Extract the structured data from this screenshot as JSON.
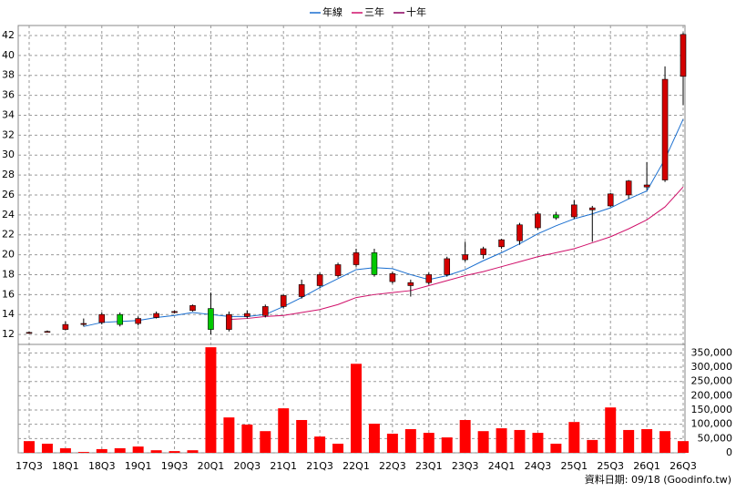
{
  "chart_data": {
    "type": "candlestick",
    "categories": [
      "17Q3",
      null,
      "18Q1",
      null,
      "18Q3",
      null,
      "19Q1",
      null,
      "19Q3",
      null,
      "20Q1",
      null,
      "20Q3",
      null,
      "21Q1",
      null,
      "21Q3",
      null,
      "22Q1",
      null,
      "22Q3",
      null,
      "23Q1",
      null,
      "23Q3",
      null,
      "24Q1",
      null,
      "24Q3",
      null,
      "25Q1",
      null,
      "25Q3",
      null,
      "26Q1",
      null,
      "26Q3"
    ],
    "open": [
      12.2,
      12.3,
      12.5,
      13.0,
      13.2,
      14.0,
      13.1,
      13.7,
      14.2,
      14.4,
      14.6,
      12.5,
      13.8,
      13.9,
      14.8,
      15.8,
      16.9,
      17.9,
      19.0,
      20.2,
      17.3,
      16.9,
      17.2,
      18.0,
      19.5,
      20.0,
      20.8,
      21.4,
      22.7,
      24.0,
      23.8,
      24.5,
      24.9,
      26.0,
      26.8,
      27.5,
      37.9
    ],
    "high": [
      12.3,
      12.4,
      13.3,
      13.6,
      14.2,
      14.2,
      13.8,
      14.3,
      14.4,
      15.0,
      16.2,
      14.3,
      14.4,
      15.0,
      16.0,
      17.5,
      18.2,
      19.2,
      20.6,
      20.6,
      18.3,
      17.5,
      18.2,
      19.8,
      21.3,
      20.8,
      21.6,
      23.2,
      24.3,
      24.3,
      25.5,
      24.9,
      26.2,
      27.5,
      29.3,
      38.9,
      42.3
    ],
    "low": [
      12.1,
      12.2,
      12.4,
      12.8,
      13.0,
      12.8,
      12.9,
      13.6,
      14.1,
      14.3,
      12.0,
      12.3,
      13.6,
      13.7,
      14.6,
      15.6,
      16.7,
      17.7,
      18.8,
      17.8,
      17.1,
      15.8,
      17.0,
      17.8,
      19.3,
      19.6,
      20.6,
      21.0,
      22.5,
      23.5,
      23.6,
      21.3,
      24.8,
      25.6,
      26.5,
      27.3,
      35.0
    ],
    "close": [
      12.2,
      12.3,
      13.0,
      13.1,
      14.0,
      13.0,
      13.6,
      14.1,
      14.3,
      14.9,
      12.5,
      14.0,
      14.1,
      14.8,
      15.9,
      17.0,
      18.0,
      19.0,
      20.2,
      18.0,
      18.1,
      17.2,
      18.0,
      19.6,
      20.0,
      20.6,
      21.5,
      23.0,
      24.1,
      23.7,
      25.0,
      24.7,
      26.1,
      27.4,
      27.0,
      37.6,
      42.1
    ],
    "up_color": "#d40000",
    "down_color": "#00c800",
    "series": [
      {
        "name": "年線",
        "color": "#1a6fd0",
        "values": [
          null,
          null,
          null,
          12.8,
          13.2,
          13.3,
          13.4,
          13.7,
          13.9,
          14.2,
          14.0,
          13.8,
          13.8,
          14.0,
          14.8,
          15.7,
          16.7,
          17.6,
          18.5,
          18.7,
          18.6,
          18.0,
          17.5,
          17.9,
          18.5,
          19.4,
          20.2,
          21.1,
          22.1,
          22.9,
          23.6,
          24.1,
          24.7,
          25.6,
          26.4,
          29.6,
          33.6
        ]
      },
      {
        "name": "三年",
        "color": "#d0106a",
        "values": [
          null,
          null,
          null,
          null,
          null,
          null,
          null,
          null,
          null,
          null,
          null,
          13.5,
          13.6,
          13.8,
          13.9,
          14.2,
          14.5,
          15.0,
          15.7,
          16.0,
          16.2,
          16.4,
          16.9,
          17.4,
          17.9,
          18.3,
          18.8,
          19.3,
          19.8,
          20.2,
          20.6,
          21.2,
          21.8,
          22.6,
          23.5,
          24.8,
          26.8
        ]
      },
      {
        "name": "十年",
        "color": "#8a0060",
        "values": [
          null,
          null,
          null,
          null,
          null,
          null,
          null,
          null,
          null,
          null,
          null,
          null,
          null,
          null,
          null,
          null,
          null,
          null,
          null,
          null,
          null,
          null,
          null,
          null,
          null,
          null,
          null,
          null,
          null,
          null,
          null,
          null,
          null,
          null,
          null,
          null,
          null
        ]
      }
    ],
    "ylim": [
      11,
      43
    ],
    "yticks": [
      12,
      14,
      16,
      18,
      20,
      22,
      24,
      26,
      28,
      30,
      32,
      34,
      36,
      38,
      40,
      42
    ],
    "volume": {
      "color": "#ff0000",
      "values": [
        41000,
        32000,
        16000,
        3000,
        13000,
        16000,
        22000,
        9000,
        6000,
        9000,
        370000,
        124000,
        99000,
        76000,
        156000,
        115000,
        57000,
        32000,
        312000,
        102000,
        67000,
        83000,
        70000,
        54000,
        115000,
        76000,
        86000,
        80000,
        70000,
        32000,
        108000,
        45000,
        159000,
        80000,
        83000,
        76000,
        41000
      ],
      "ylim": [
        0,
        380000
      ],
      "yticks": [
        0,
        {
          "value": 50000,
          "label": "50,000"
        },
        {
          "value": 100000,
          "label": "100,000"
        },
        {
          "value": 150000,
          "label": "150,000"
        },
        {
          "value": 200000,
          "label": "200,000"
        },
        {
          "value": 250000,
          "label": "250,000"
        },
        {
          "value": 300000,
          "label": "300,000"
        },
        {
          "value": 350000,
          "label": "350,000"
        }
      ]
    },
    "grid": true,
    "source_note": "資料日期: 09/18 (Goodinfo.tw)"
  }
}
